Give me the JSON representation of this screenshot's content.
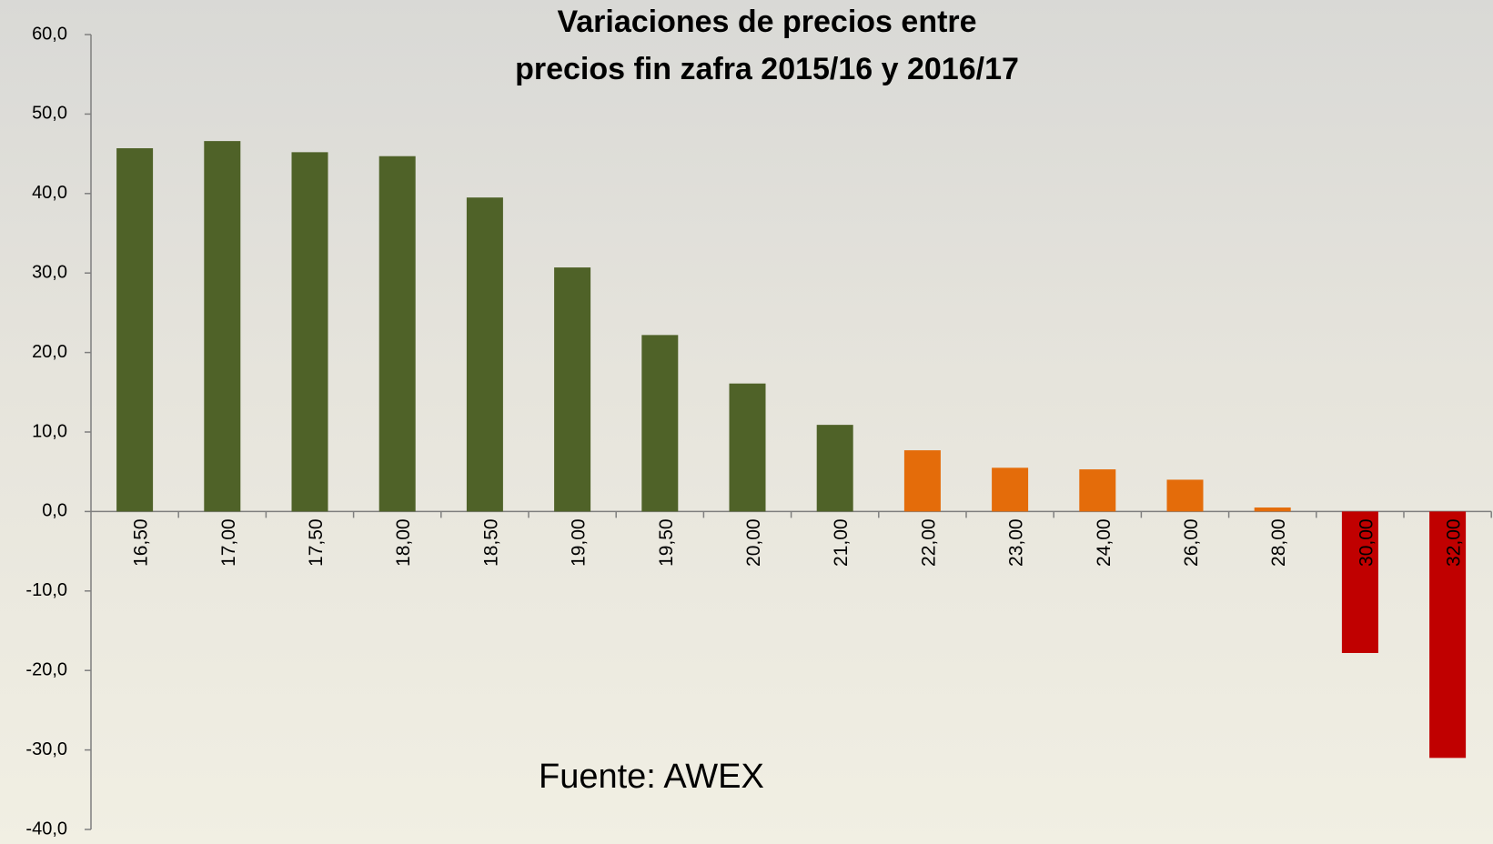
{
  "chart_data": {
    "type": "bar",
    "title": [
      "Variaciones de precios entre",
      "precios fin zafra 2015/16 y 2016/17"
    ],
    "annotation": "Fuente: AWEX",
    "categories": [
      "16,50",
      "17,00",
      "17,50",
      "18,00",
      "18,50",
      "19,00",
      "19,50",
      "20,00",
      "21,00",
      "22,00",
      "23,00",
      "24,00",
      "26,00",
      "28,00",
      "30,00",
      "32,00"
    ],
    "values": [
      45.7,
      46.6,
      45.2,
      44.7,
      39.5,
      30.7,
      22.2,
      16.1,
      10.9,
      7.7,
      5.5,
      5.3,
      4.0,
      0.5,
      -17.8,
      -31.0
    ],
    "colors": [
      "#4f6228",
      "#4f6228",
      "#4f6228",
      "#4f6228",
      "#4f6228",
      "#4f6228",
      "#4f6228",
      "#4f6228",
      "#4f6228",
      "#e46c0a",
      "#e46c0a",
      "#e46c0a",
      "#e46c0a",
      "#e46c0a",
      "#c00000",
      "#c00000"
    ],
    "ylim": [
      -40,
      60
    ],
    "yticks": [
      {
        "value": -40,
        "label": "-40,0"
      },
      {
        "value": -30,
        "label": "-30,0"
      },
      {
        "value": -20,
        "label": "-20,0"
      },
      {
        "value": -10,
        "label": "-10,0"
      },
      {
        "value": 0,
        "label": "0,0"
      },
      {
        "value": 10,
        "label": "10,0"
      },
      {
        "value": 20,
        "label": "20,0"
      },
      {
        "value": 30,
        "label": "30,0"
      },
      {
        "value": 40,
        "label": "40,0"
      },
      {
        "value": 50,
        "label": "50,0"
      },
      {
        "value": 60,
        "label": "60,0"
      }
    ],
    "grid": false
  }
}
